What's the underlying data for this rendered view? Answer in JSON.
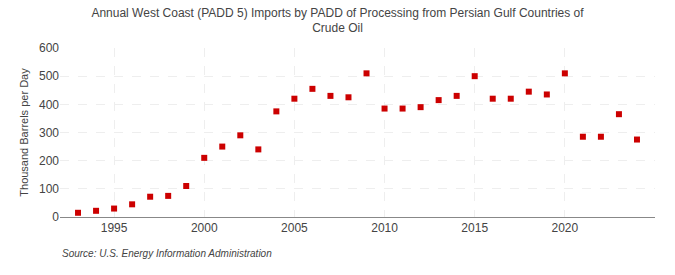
{
  "chart_data": {
    "type": "scatter",
    "title": "Annual West Coast (PADD 5) Imports by PADD of Processing from Persian Gulf Countries of\nCrude Oil",
    "ylabel": "Thousand Barrels per Day",
    "annotations": [
      "Source: U.S. Energy Information Administration"
    ],
    "x": [
      1993,
      1994,
      1995,
      1996,
      1997,
      1998,
      1999,
      2000,
      2001,
      2002,
      2003,
      2004,
      2005,
      2006,
      2007,
      2008,
      2009,
      2010,
      2011,
      2012,
      2013,
      2014,
      2015,
      2016,
      2017,
      2018,
      2019,
      2020,
      2021,
      2022,
      2023,
      2024
    ],
    "values": [
      15,
      22,
      30,
      45,
      72,
      75,
      110,
      210,
      250,
      290,
      240,
      375,
      420,
      455,
      430,
      425,
      510,
      385,
      385,
      390,
      415,
      430,
      500,
      420,
      420,
      445,
      435,
      510,
      285,
      285,
      365,
      275
    ],
    "color": "#CC0000",
    "marker": "square",
    "xlim": [
      1992,
      2025
    ],
    "ylim": [
      0,
      600
    ],
    "xticks": [
      1995,
      2000,
      2005,
      2010,
      2015,
      2020
    ],
    "yticks": [
      0,
      100,
      200,
      300,
      400,
      500,
      600
    ],
    "grid": true
  }
}
